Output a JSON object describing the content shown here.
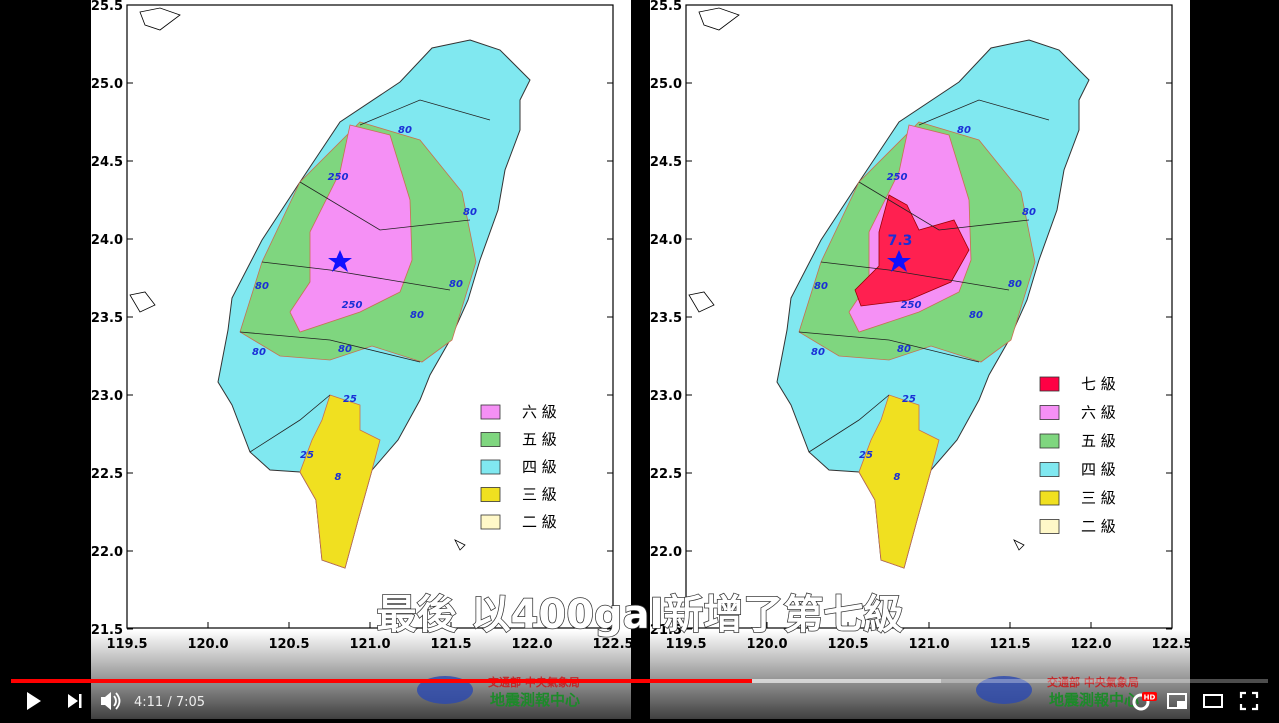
{
  "maps": [
    {
      "yticks": [
        "25.5",
        "25.0",
        "24.5",
        "24.0",
        "23.5",
        "23.0",
        "22.5",
        "22.0",
        "21.5"
      ],
      "xticks": [
        "119.5",
        "120.0",
        "120.5",
        "121.0",
        "121.5",
        "122.0",
        "122.5"
      ],
      "contours": [
        "80",
        "250",
        "80",
        "80",
        "250",
        "80",
        "80",
        "80",
        "80",
        "25",
        "25",
        "8"
      ],
      "legend": [
        "六 級",
        "五 級",
        "四 級",
        "三 級",
        "二 級"
      ]
    },
    {
      "yticks": [
        "25.5",
        "25.0",
        "24.5",
        "24.0",
        "23.5",
        "23.0",
        "22.5",
        "22.0",
        "21.5"
      ],
      "xticks": [
        "119.5",
        "120.0",
        "120.5",
        "121.0",
        "121.5",
        "122.0",
        "122.5"
      ],
      "contours": [
        "80",
        "250",
        "80",
        "80",
        "250",
        "80",
        "80",
        "80",
        "80",
        "25",
        "25",
        "8"
      ],
      "magnitude": "7.3",
      "legend": [
        "七 級",
        "六 級",
        "五 級",
        "四 級",
        "三 級",
        "二 級"
      ]
    }
  ],
  "logo": {
    "line1": "交通部 中央氣象局",
    "line2": "地震測報中心"
  },
  "subtitle": "最後 以400gal新增了第七級",
  "player": {
    "time": "4:11 / 7:05",
    "quality": "HD"
  }
}
